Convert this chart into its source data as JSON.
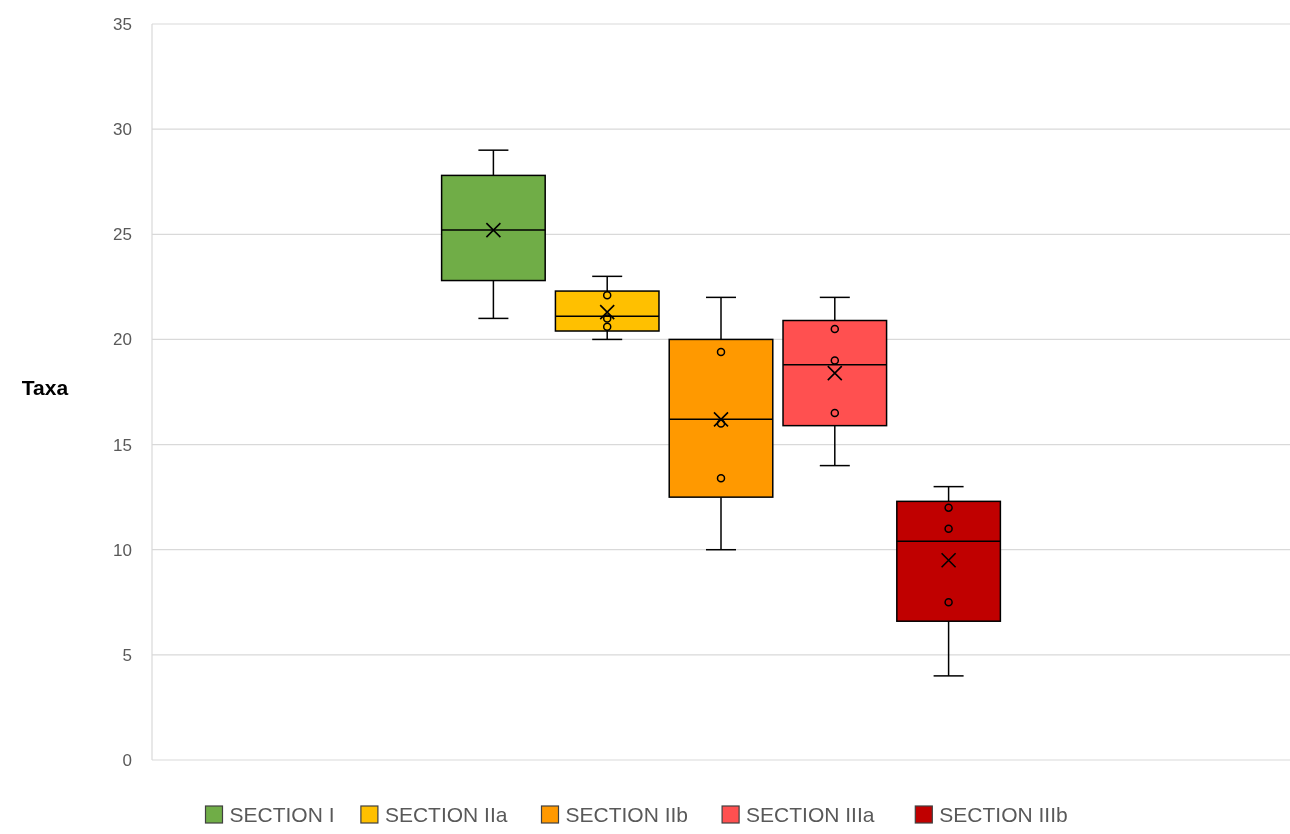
{
  "chart_data": {
    "type": "box",
    "ylabel": "Taxa",
    "categories": [
      null
    ],
    "ylim": [
      0,
      35
    ],
    "yticks": [
      0,
      5,
      10,
      15,
      20,
      25,
      30,
      35
    ],
    "grid": "y",
    "legend": "bottom",
    "series": [
      {
        "name": "SECTION I",
        "color": "#70ad47",
        "boxes": [
          {
            "low": 21,
            "q1": 22.8,
            "median": 25.2,
            "q3": 27.8,
            "high": 29,
            "mean": 25.2
          }
        ]
      },
      {
        "name": "SECTION IIa",
        "color": "#ffc000",
        "boxes": [
          {
            "low": 20,
            "q1": 20.4,
            "median": 21.1,
            "q3": 22.3,
            "high": 23,
            "mean": 21.3,
            "outliers": [
              22.1,
              21,
              20.6
            ]
          }
        ]
      },
      {
        "name": "SECTION IIb",
        "color": "#ff9900",
        "boxes": [
          {
            "low": 10,
            "q1": 12.5,
            "median": 16.2,
            "q3": 20,
            "high": 22,
            "mean": 16.2,
            "outliers": [
              19.4,
              16,
              13.4
            ]
          }
        ]
      },
      {
        "name": "SECTION IIIa",
        "color": "#ff5050",
        "boxes": [
          {
            "low": 14,
            "q1": 15.9,
            "median": 18.8,
            "q3": 20.9,
            "high": 22,
            "mean": 18.4,
            "outliers": [
              20.5,
              19,
              16.5
            ]
          }
        ]
      },
      {
        "name": "SECTION IIIb",
        "color": "#c00000",
        "boxes": [
          {
            "low": 4,
            "q1": 6.6,
            "median": 10.4,
            "q3": 12.3,
            "high": 13,
            "mean": 9.5,
            "outliers": [
              12,
              11,
              7.5
            ]
          }
        ]
      }
    ]
  }
}
